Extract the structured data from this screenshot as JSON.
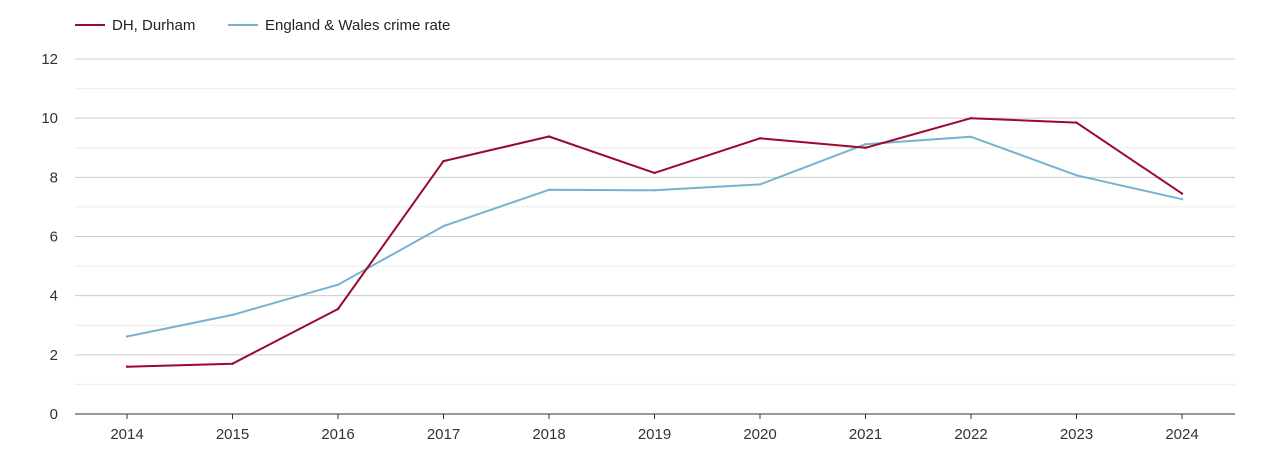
{
  "chart_data": {
    "type": "line",
    "title": "",
    "xlabel": "",
    "ylabel": "",
    "x": [
      "2014",
      "2015",
      "2016",
      "2017",
      "2018",
      "2019",
      "2020",
      "2021",
      "2022",
      "2023",
      "2024"
    ],
    "ylim": [
      0,
      12
    ],
    "yticks": [
      "0",
      "2",
      "4",
      "6",
      "8",
      "10",
      "12"
    ],
    "grid": true,
    "legend_position": "top-left",
    "series": [
      {
        "name": "DH, Durham",
        "color": "#990a2c",
        "values": [
          1.6,
          1.7,
          3.55,
          8.55,
          9.38,
          8.15,
          9.32,
          9.0,
          10.0,
          9.85,
          7.45
        ]
      },
      {
        "name": "England & Wales crime rate",
        "color": "#79b1d2",
        "values": [
          2.62,
          3.35,
          4.37,
          6.35,
          7.58,
          7.56,
          7.76,
          9.12,
          9.37,
          8.07,
          7.26
        ]
      }
    ]
  }
}
